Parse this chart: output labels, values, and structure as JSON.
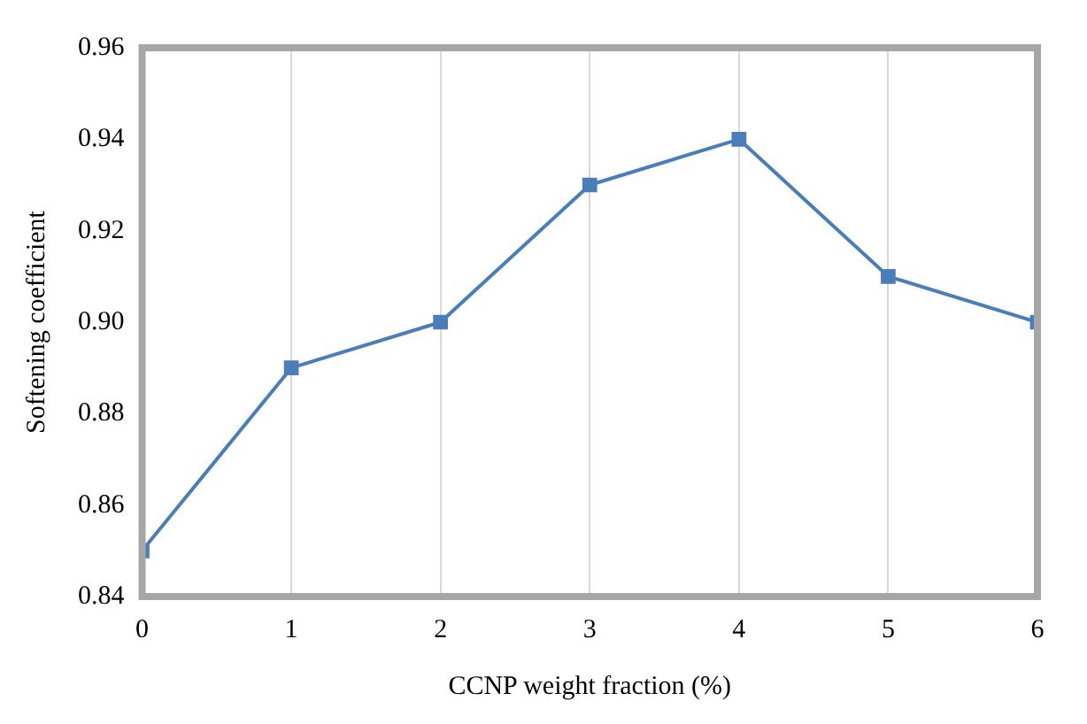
{
  "chart_data": {
    "type": "line",
    "xlabel": "CCNP weight fraction (%)",
    "ylabel": "Softening coefficient",
    "x": [
      0,
      1,
      2,
      3,
      4,
      5,
      6
    ],
    "series": [
      {
        "color": "#4a7ebb",
        "values": [
          0.85,
          0.89,
          0.9,
          0.93,
          0.94,
          0.91,
          0.9
        ]
      }
    ],
    "xlim": [
      0,
      6
    ],
    "xticks": [
      0,
      1,
      2,
      3,
      4,
      5,
      6
    ],
    "ylim": [
      0.84,
      0.96
    ],
    "yticks": [
      0.84,
      0.86,
      0.88,
      {
        "value": 0.9,
        "label": "0.90"
      },
      0.92,
      0.94,
      0.96
    ],
    "grid": "x",
    "legend": false,
    "marker": "square",
    "line_style": "solid"
  }
}
